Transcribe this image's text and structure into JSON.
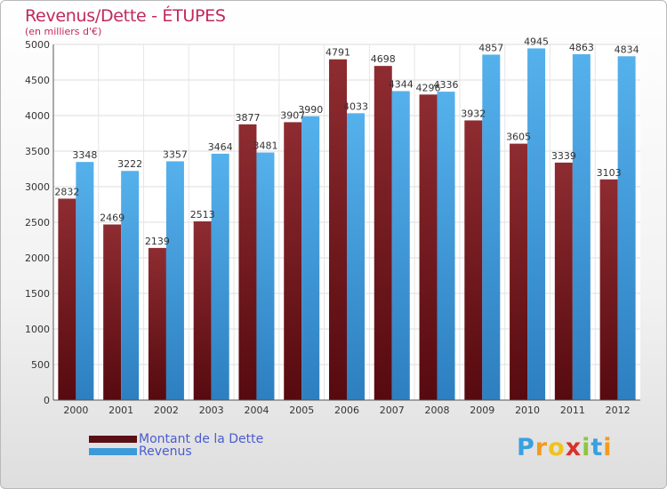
{
  "title": "Revenus/Dette - ÉTUPES",
  "subtitle": "(en milliers d'€)",
  "colors": {
    "title": "#c2285a",
    "debt": "#7a1f24",
    "revenue": "#3c9ad9",
    "legend_text": "#4a5ccf"
  },
  "legend": [
    {
      "label": "Montant de la Dette",
      "color": "#5a0f14"
    },
    {
      "label": "Revenus",
      "color": "#3c9ad9"
    }
  ],
  "logo": {
    "text": "Proxiti",
    "letters": [
      "P",
      "r",
      "o",
      "x",
      "i",
      "t",
      "i"
    ]
  },
  "chart_data": {
    "type": "bar",
    "categories": [
      "2000",
      "2001",
      "2002",
      "2003",
      "2004",
      "2005",
      "2006",
      "2007",
      "2008",
      "2009",
      "2010",
      "2011",
      "2012"
    ],
    "series": [
      {
        "name": "Montant de la Dette",
        "values": [
          2832,
          2469,
          2139,
          2513,
          3877,
          3907,
          4791,
          4698,
          4296,
          3932,
          3605,
          3339,
          3103
        ]
      },
      {
        "name": "Revenus",
        "values": [
          3348,
          3222,
          3357,
          3464,
          3481,
          3990,
          4033,
          4344,
          4336,
          4857,
          4945,
          4863,
          4834
        ]
      }
    ],
    "ylim": [
      0,
      5000
    ],
    "yticks": [
      0,
      500,
      1000,
      1500,
      2000,
      2500,
      3000,
      3500,
      4000,
      4500,
      5000
    ],
    "grid": true,
    "legend_position": "bottom-left"
  }
}
